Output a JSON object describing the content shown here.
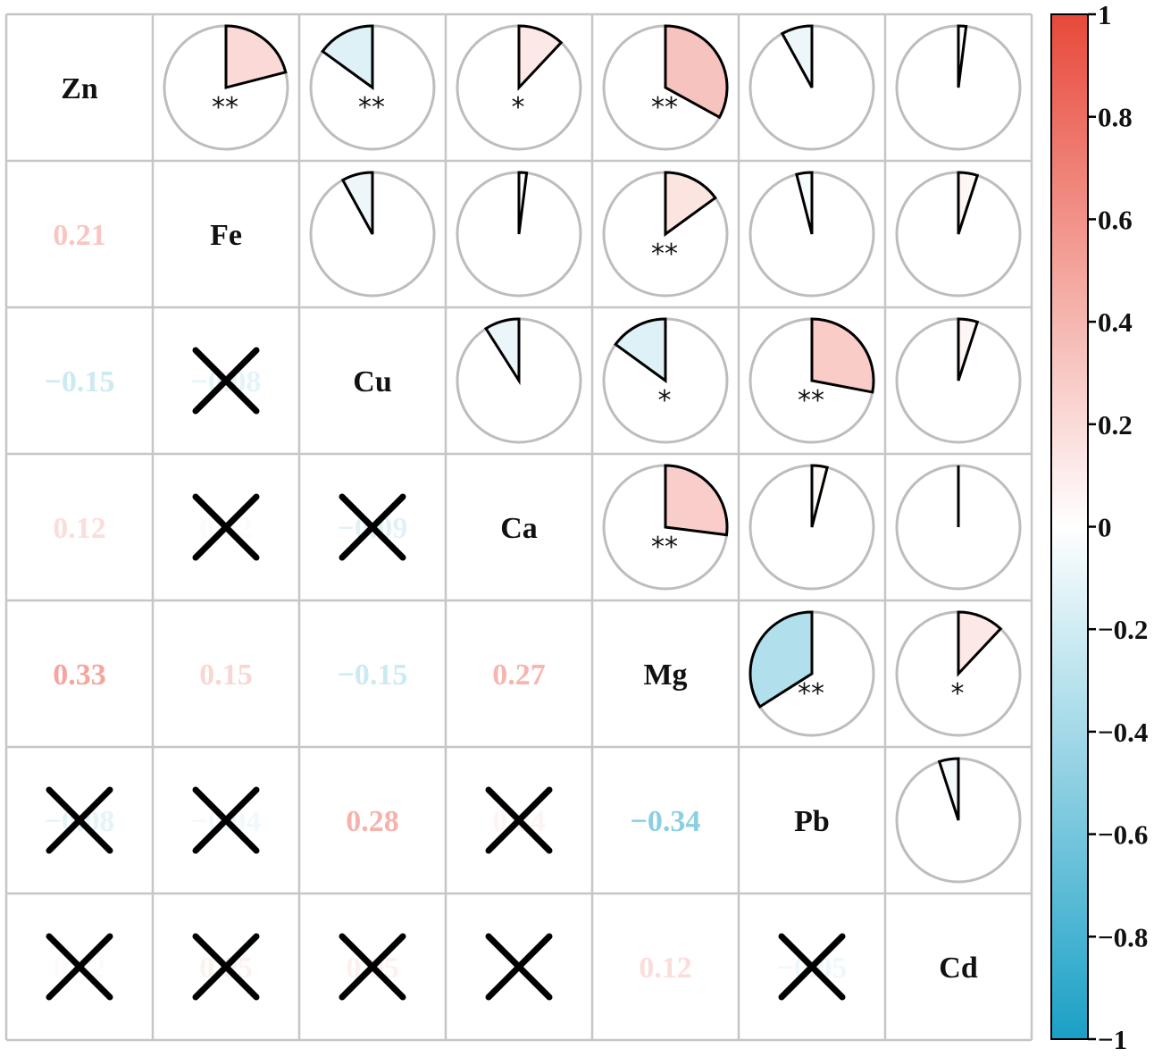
{
  "chart_data": {
    "type": "heatmap",
    "variables": [
      "Zn",
      "Fe",
      "Cu",
      "Ca",
      "Mg",
      "Pb",
      "Cd"
    ],
    "correlations": [
      [
        1,
        0.21,
        -0.15,
        0.12,
        0.33,
        -0.08,
        0.02
      ],
      [
        0.21,
        1,
        -0.08,
        0.02,
        0.15,
        -0.04,
        0.05
      ],
      [
        -0.15,
        -0.08,
        1,
        -0.09,
        -0.15,
        0.28,
        0.05
      ],
      [
        0.12,
        0.02,
        -0.09,
        1,
        0.27,
        0.04,
        0.0
      ],
      [
        0.33,
        0.15,
        -0.15,
        0.27,
        1,
        -0.34,
        0.12
      ],
      [
        -0.08,
        -0.04,
        0.28,
        0.04,
        -0.34,
        1,
        -0.05
      ],
      [
        0.02,
        0.05,
        0.05,
        0.0,
        0.12,
        -0.05,
        1
      ]
    ],
    "significance": [
      [
        "",
        "**",
        "**",
        "*",
        "**",
        "",
        ""
      ],
      [
        "**",
        "",
        "",
        "",
        "**",
        "",
        ""
      ],
      [
        "**",
        "",
        "",
        "",
        "*",
        "**",
        ""
      ],
      [
        "*",
        "",
        "",
        "",
        "**",
        "",
        ""
      ],
      [
        "**",
        "**",
        "*",
        "**",
        "",
        "**",
        "*"
      ],
      [
        "",
        "",
        "**",
        "",
        "**",
        "",
        ""
      ],
      [
        "",
        "",
        "",
        "",
        "*",
        "",
        ""
      ]
    ],
    "value_labels": [
      [
        "",
        "",
        "",
        "",
        "",
        "",
        ""
      ],
      [
        "0.21",
        "",
        "",
        "",
        "",
        "",
        ""
      ],
      [
        "−0.15",
        "−0.08",
        "",
        "",
        "",
        "",
        ""
      ],
      [
        "0.12",
        "0.02",
        "−0.09",
        "",
        "",
        "",
        ""
      ],
      [
        "0.33",
        "0.15",
        "−0.15",
        "0.27",
        "",
        "",
        ""
      ],
      [
        "−0.08",
        "−0.04",
        "0.28",
        "0.04",
        "−0.34",
        "",
        ""
      ],
      [
        "0.02",
        "0.05",
        "0.05",
        "0.00",
        "0.12",
        "−0.05",
        ""
      ]
    ],
    "colorbar": {
      "range": [
        -1,
        1
      ],
      "ticks": [
        "1",
        "0.8",
        "0.6",
        "0.4",
        "0.2",
        "0",
        "−0.2",
        "−0.4",
        "−0.6",
        "−0.8",
        "−1"
      ],
      "low_color": "#1AA0C6",
      "mid_color": "#FFFFFF",
      "high_color": "#E8493A"
    },
    "upper_glyph": "pie",
    "lower_glyph": "number",
    "insignificant_marker": "cross"
  }
}
